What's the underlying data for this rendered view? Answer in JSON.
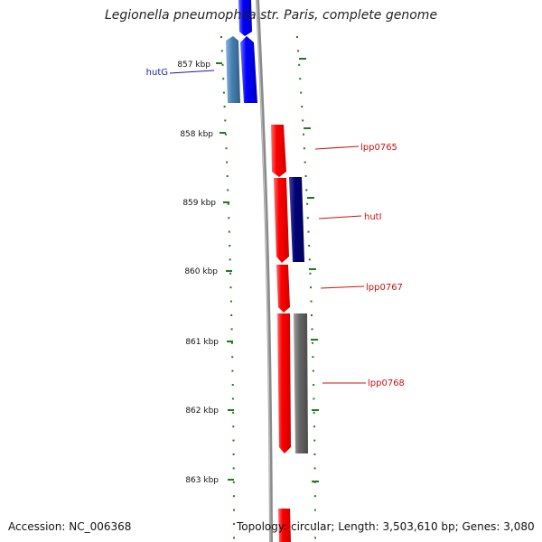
{
  "title": "Legionella pneumophila str. Paris, complete genome",
  "kbp_ticks": [
    "857 kbp",
    "858 kbp",
    "859 kbp",
    "860 kbp",
    "861 kbp",
    "862 kbp",
    "863 kbp"
  ],
  "genes": [
    {
      "label": "hutG",
      "color": "#1a1aa8"
    },
    {
      "label": "lpp0765",
      "color": "#cc1111"
    },
    {
      "label": "hutI",
      "color": "#cc1111"
    },
    {
      "label": "lpp0767",
      "color": "#cc1111"
    },
    {
      "label": "lpp0768",
      "color": "#cc1111"
    }
  ],
  "colors": {
    "backbone": "#8a8a8a",
    "tick": "#1f7a1f",
    "forward_gene": "#ff0000",
    "reverse_gene": "#0000ff",
    "steelblue_gene": "#4682b4",
    "navy_gene": "#00007a",
    "gray_gene": "#666666"
  },
  "footer": {
    "accession": "Accession: NC_006368",
    "summary": "Topology: circular; Length: 3,503,610 bp; Genes: 3,080"
  }
}
